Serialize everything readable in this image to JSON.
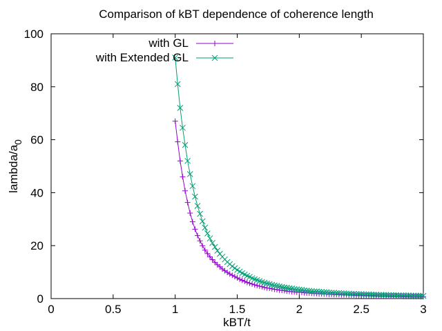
{
  "chart_data": {
    "type": "line",
    "title": "Comparison of kBT dependence of coherence length",
    "xlabel": "kBT/t",
    "ylabel": "lambda/a",
    "ylabel_subscript": "0",
    "xlim": [
      0,
      3
    ],
    "ylim": [
      0,
      100
    ],
    "xticks": [
      "0",
      "0.5",
      "1",
      "1.5",
      "2",
      "2.5",
      "3"
    ],
    "yticks": [
      "0",
      "20",
      "40",
      "60",
      "80",
      "100"
    ],
    "legend": "top-right",
    "x": [
      1.0,
      1.02,
      1.04,
      1.06,
      1.08,
      1.1,
      1.12,
      1.14,
      1.16,
      1.18,
      1.2,
      1.22,
      1.24,
      1.26,
      1.28,
      1.3,
      1.32,
      1.34,
      1.36,
      1.38,
      1.4,
      1.42,
      1.44,
      1.46,
      1.48,
      1.5,
      1.52,
      1.54,
      1.56,
      1.58,
      1.6,
      1.62,
      1.64,
      1.66,
      1.68,
      1.7,
      1.72,
      1.74,
      1.76,
      1.78,
      1.8,
      1.82,
      1.84,
      1.86,
      1.88,
      1.9,
      1.92,
      1.94,
      1.96,
      1.98,
      2.0,
      2.02,
      2.04,
      2.06,
      2.08,
      2.1,
      2.12,
      2.14,
      2.16,
      2.18,
      2.2,
      2.22,
      2.24,
      2.26,
      2.28,
      2.3,
      2.32,
      2.34,
      2.36,
      2.38,
      2.4,
      2.42,
      2.44,
      2.46,
      2.48,
      2.5,
      2.52,
      2.54,
      2.56,
      2.58,
      2.6,
      2.62,
      2.64,
      2.66,
      2.68,
      2.7,
      2.72,
      2.74,
      2.76,
      2.78,
      2.8,
      2.82,
      2.84,
      2.86,
      2.88,
      2.9,
      2.92,
      2.94,
      2.96,
      2.98,
      3.0
    ],
    "series": [
      {
        "name": "with GL",
        "color": "#9400d3",
        "marker": "plus",
        "values": [
          67.0,
          59.2,
          52.0,
          46.0,
          40.7,
          36.3,
          32.3,
          29.0,
          26.2,
          23.8,
          21.8,
          20.0,
          18.3,
          17.0,
          15.8,
          14.7,
          13.7,
          12.8,
          12.0,
          11.2,
          10.5,
          9.9,
          9.3,
          8.8,
          8.3,
          7.8,
          7.3,
          6.9,
          6.5,
          6.1,
          5.8,
          5.5,
          5.2,
          4.9,
          4.7,
          4.5,
          4.2,
          4.0,
          3.9,
          3.7,
          3.5,
          3.4,
          3.2,
          3.1,
          3.0,
          2.8,
          2.7,
          2.6,
          2.5,
          2.4,
          2.4,
          2.3,
          2.2,
          2.1,
          2.1,
          2.0,
          1.9,
          1.9,
          1.8,
          1.8,
          1.7,
          1.7,
          1.6,
          1.6,
          1.5,
          1.5,
          1.5,
          1.4,
          1.4,
          1.4,
          1.3,
          1.3,
          1.3,
          1.2,
          1.2,
          1.2,
          1.2,
          1.1,
          1.1,
          1.1,
          1.1,
          1.0,
          1.0,
          1.0,
          1.0,
          1.0,
          0.9,
          0.9,
          0.9,
          0.9,
          0.9,
          0.9,
          0.8,
          0.8,
          0.8,
          0.8,
          0.8,
          0.8,
          0.8,
          0.7,
          0.7
        ]
      },
      {
        "name": "with Extended GL",
        "color": "#009e73",
        "marker": "cross",
        "values": [
          91.0,
          81.0,
          72.0,
          64.5,
          58.0,
          52.0,
          47.0,
          42.5,
          38.5,
          35.0,
          32.0,
          29.2,
          26.8,
          24.6,
          22.7,
          21.0,
          19.5,
          18.1,
          16.9,
          15.8,
          14.8,
          13.8,
          13.0,
          12.2,
          11.5,
          10.8,
          10.2,
          9.6,
          9.1,
          8.6,
          8.2,
          7.7,
          7.3,
          7.0,
          6.6,
          6.3,
          6.0,
          5.7,
          5.5,
          5.2,
          5.0,
          4.8,
          4.6,
          4.4,
          4.2,
          4.1,
          3.9,
          3.8,
          3.6,
          3.5,
          3.4,
          3.3,
          3.1,
          3.0,
          2.9,
          2.8,
          2.7,
          2.7,
          2.6,
          2.5,
          2.4,
          2.4,
          2.3,
          2.2,
          2.2,
          2.1,
          2.1,
          2.0,
          2.0,
          1.9,
          1.9,
          1.8,
          1.8,
          1.7,
          1.7,
          1.7,
          1.6,
          1.6,
          1.6,
          1.5,
          1.5,
          1.5,
          1.4,
          1.4,
          1.4,
          1.4,
          1.3,
          1.3,
          1.3,
          1.3,
          1.2,
          1.2,
          1.2,
          1.2,
          1.2,
          1.1,
          1.1,
          1.1,
          1.1,
          1.1,
          1.0
        ]
      }
    ]
  }
}
